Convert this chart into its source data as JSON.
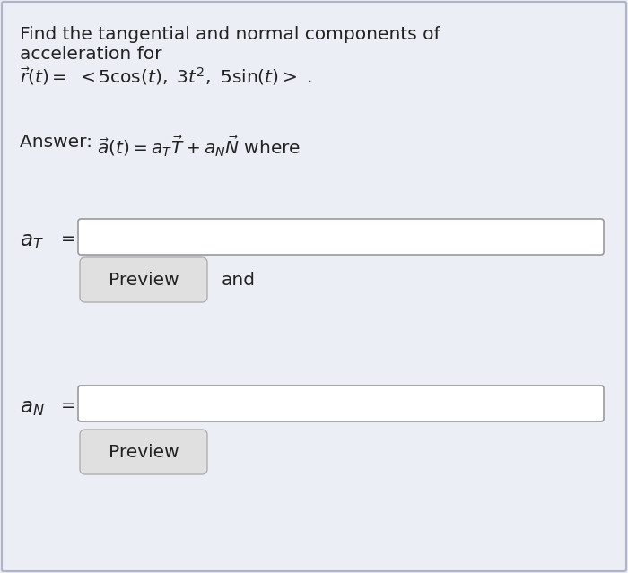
{
  "bg_color": "#e8eaf2",
  "text_color": "#222222",
  "title_line1": "Find the tangential and normal components of",
  "title_line2": "acceleration for",
  "r_equation": "$\\vec{r}(t) = \\ < 5\\cos(t),\\ 3t^2,\\ 5\\sin(t) >\\ .$",
  "answer_prefix": "Answer: ",
  "answer_math": "$\\vec{a}(t) = a_T\\vec{T} + a_N\\vec{N}$ where",
  "aT_label": "$a_T$",
  "aN_label": "$a_N$",
  "equals": "=",
  "preview_text": "Preview",
  "and_text": "and",
  "input_box_color": "#ffffff",
  "button_color": "#e0e0e0",
  "button_edge_color": "#b0b0b0",
  "input_edge_color": "#999999",
  "font_size": 14.5,
  "fig_width": 7.0,
  "fig_height": 6.39,
  "dpi": 100,
  "border_color": "#b0b4c8",
  "inner_bg": "#eceef5"
}
